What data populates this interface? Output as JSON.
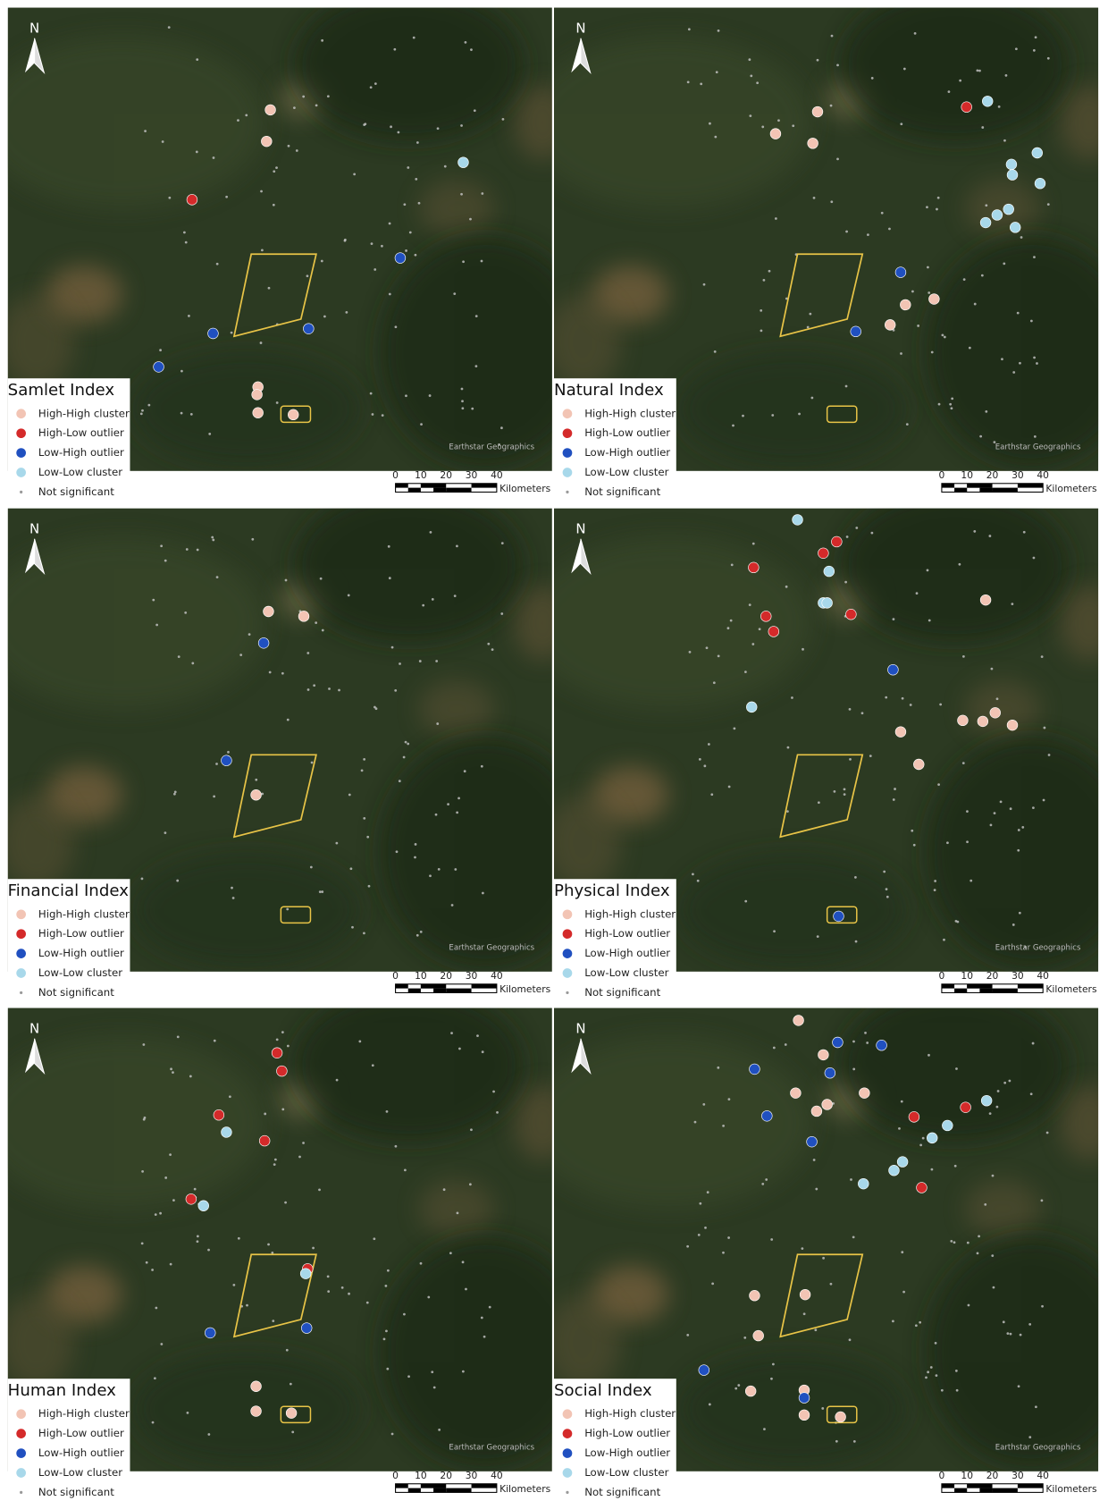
{
  "legend": [
    "High-High cluster",
    "High-Low outlier",
    "Low-High outlier",
    "Low-Low cluster",
    "Not significant"
  ],
  "north": "N",
  "scale_ticks": [
    0,
    10,
    20,
    30,
    40
  ],
  "scale_unit": "Kilometers",
  "credit": "Earthstar Geographics",
  "panels": [
    {
      "title": "Samlet Index"
    },
    {
      "title": "Natural Index"
    },
    {
      "title": "Financial Index"
    },
    {
      "title": "Physical Index"
    },
    {
      "title": "Human Index"
    },
    {
      "title": "Social Index"
    }
  ]
}
